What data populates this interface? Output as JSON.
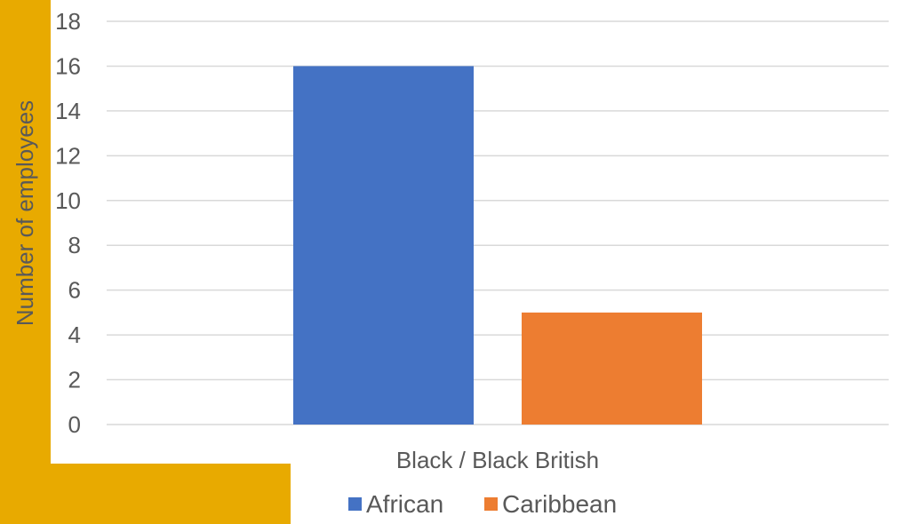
{
  "chart_data": {
    "type": "bar",
    "title": "",
    "xlabel": "",
    "ylabel": "Number of employees",
    "categories": [
      "Black / Black British"
    ],
    "series": [
      {
        "name": "African",
        "values": [
          16
        ],
        "color": "#4472C4"
      },
      {
        "name": "Caribbean",
        "values": [
          5
        ],
        "color": "#ED7D31"
      }
    ],
    "ylim": [
      0,
      18
    ],
    "yticks": [
      "0",
      "2",
      "4",
      "6",
      "8",
      "10",
      "12",
      "14",
      "16",
      "18"
    ],
    "grid": true,
    "legend_position": "bottom"
  },
  "colors": {
    "sidebar_accent": "#E8AA00",
    "gridline": "#D9D9D9",
    "text": "#595959"
  }
}
